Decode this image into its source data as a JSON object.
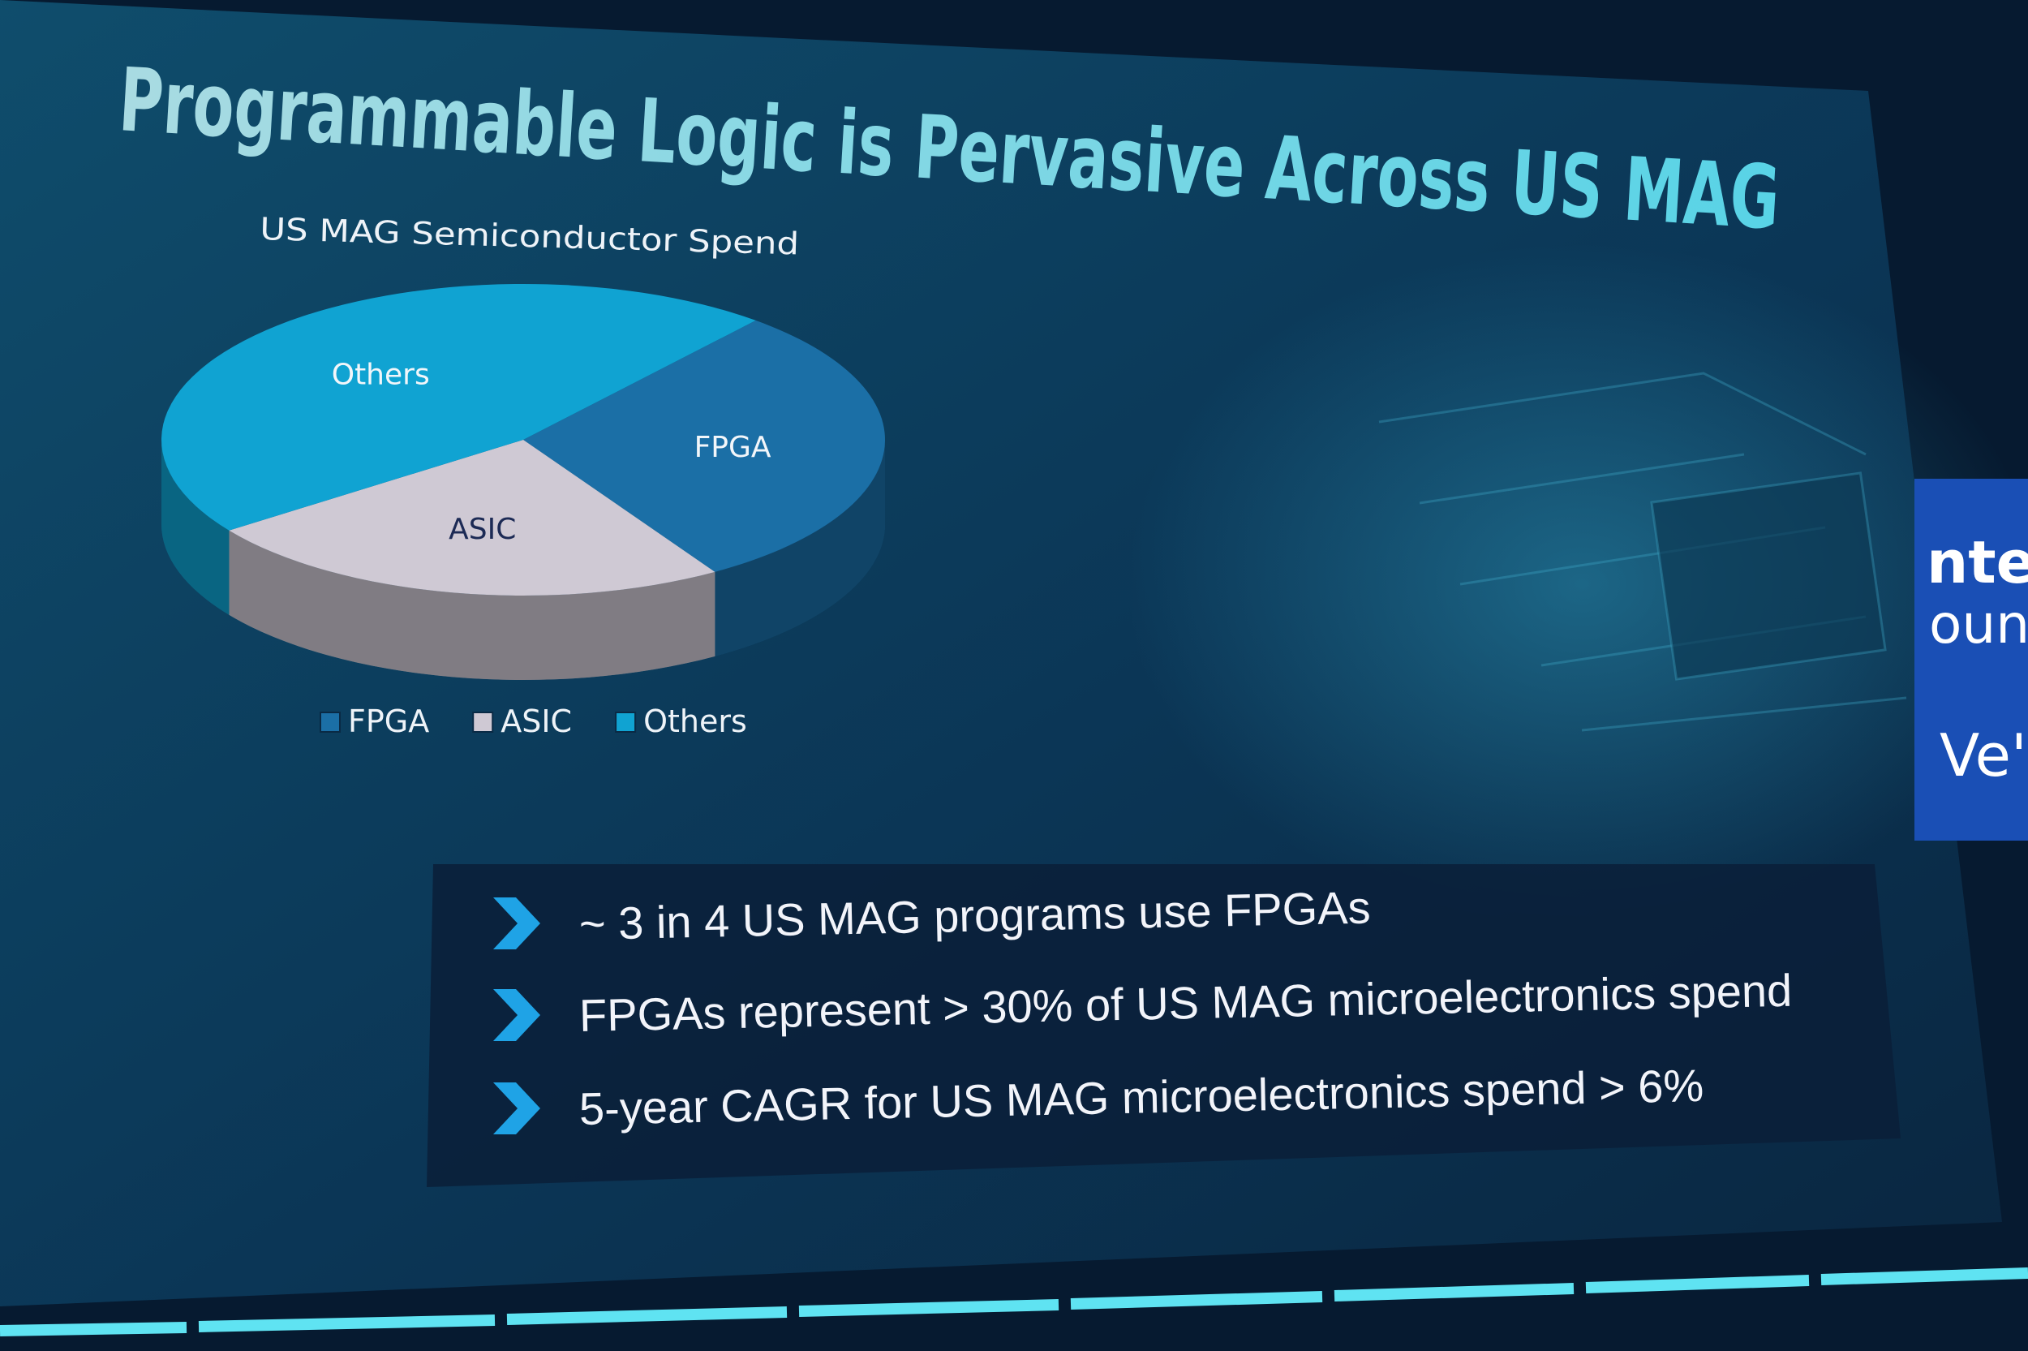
{
  "slide": {
    "title": "Programmable Logic is Pervasive Across US MAG",
    "bullets": [
      "~ 3 in 4 US MAG programs use FPGAs",
      "FPGAs represent > 30% of US MAG microelectronics spend",
      "5-year CAGR for US MAG microelectronics spend > 6%"
    ]
  },
  "chart_data": {
    "type": "pie",
    "title": "US MAG Semiconductor Spend",
    "categories": [
      "FPGA",
      "ASIC",
      "Others"
    ],
    "values": [
      30,
      24,
      46
    ],
    "colors": [
      "#1b6fa6",
      "#cfc9d4",
      "#10a3d2"
    ],
    "legend": "bottom"
  },
  "sign": [
    "ntel",
    "ounc",
    "Ve'"
  ]
}
